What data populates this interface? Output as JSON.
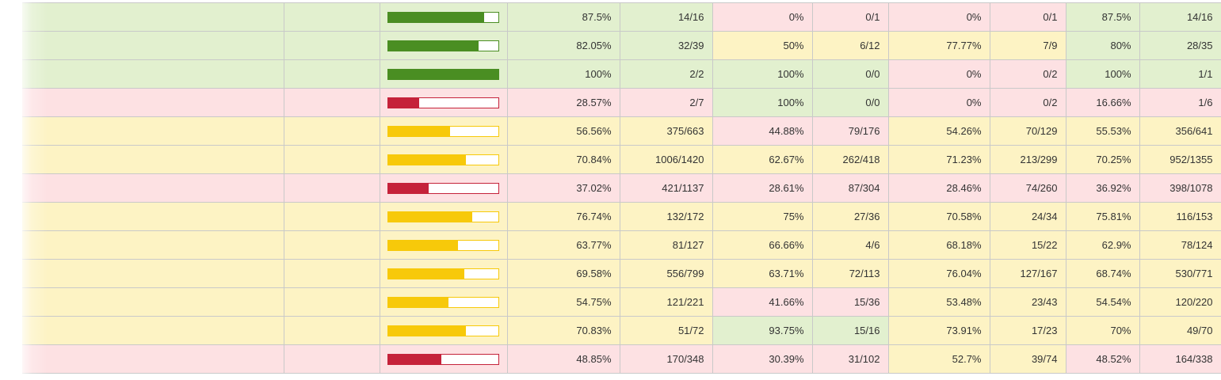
{
  "colors": {
    "success_bg": "#e2f0cf",
    "warning_bg": "#fdf3c4",
    "danger_bg": "#fde1e3",
    "bar_success": "#4a8e22",
    "bar_warning": "#f7c90a",
    "bar_danger": "#c5223a"
  },
  "rows": [
    {
      "name": "",
      "level": "success",
      "bar_fraction": 0.875,
      "bar_level": "success",
      "lines_pct": "87.5%",
      "lines": "14/16",
      "functions_pct": "0%",
      "functions": "0/1",
      "functions_level": "danger",
      "classes_pct": "0%",
      "classes": "0/1",
      "classes_level": "danger",
      "total_pct": "87.5%",
      "total": "14/16",
      "total_level": "success"
    },
    {
      "name": "",
      "level": "success",
      "bar_fraction": 0.8205,
      "bar_level": "success",
      "lines_pct": "82.05%",
      "lines": "32/39",
      "functions_pct": "50%",
      "functions": "6/12",
      "functions_level": "warning",
      "classes_pct": "77.77%",
      "classes": "7/9",
      "classes_level": "warning",
      "total_pct": "80%",
      "total": "28/35",
      "total_level": "success"
    },
    {
      "name": "",
      "level": "success",
      "bar_fraction": 1.0,
      "bar_level": "success",
      "lines_pct": "100%",
      "lines": "2/2",
      "functions_pct": "100%",
      "functions": "0/0",
      "functions_level": "success",
      "classes_pct": "0%",
      "classes": "0/2",
      "classes_level": "danger",
      "total_pct": "100%",
      "total": "1/1",
      "total_level": "success"
    },
    {
      "name": "",
      "level": "danger",
      "bar_fraction": 0.2857,
      "bar_level": "danger",
      "lines_pct": "28.57%",
      "lines": "2/7",
      "functions_pct": "100%",
      "functions": "0/0",
      "functions_level": "success",
      "classes_pct": "0%",
      "classes": "0/2",
      "classes_level": "danger",
      "total_pct": "16.66%",
      "total": "1/6",
      "total_level": "danger"
    },
    {
      "name": "",
      "level": "warning",
      "bar_fraction": 0.5656,
      "bar_level": "warning",
      "lines_pct": "56.56%",
      "lines": "375/663",
      "functions_pct": "44.88%",
      "functions": "79/176",
      "functions_level": "danger",
      "classes_pct": "54.26%",
      "classes": "70/129",
      "classes_level": "warning",
      "total_pct": "55.53%",
      "total": "356/641",
      "total_level": "warning"
    },
    {
      "name": "",
      "level": "warning",
      "bar_fraction": 0.7084,
      "bar_level": "warning",
      "lines_pct": "70.84%",
      "lines": "1006/1420",
      "functions_pct": "62.67%",
      "functions": "262/418",
      "functions_level": "warning",
      "classes_pct": "71.23%",
      "classes": "213/299",
      "classes_level": "warning",
      "total_pct": "70.25%",
      "total": "952/1355",
      "total_level": "warning"
    },
    {
      "name": "",
      "level": "danger",
      "bar_fraction": 0.3702,
      "bar_level": "danger",
      "lines_pct": "37.02%",
      "lines": "421/1137",
      "functions_pct": "28.61%",
      "functions": "87/304",
      "functions_level": "danger",
      "classes_pct": "28.46%",
      "classes": "74/260",
      "classes_level": "danger",
      "total_pct": "36.92%",
      "total": "398/1078",
      "total_level": "danger"
    },
    {
      "name": "",
      "level": "warning",
      "bar_fraction": 0.7674,
      "bar_level": "warning",
      "lines_pct": "76.74%",
      "lines": "132/172",
      "functions_pct": "75%",
      "functions": "27/36",
      "functions_level": "warning",
      "classes_pct": "70.58%",
      "classes": "24/34",
      "classes_level": "warning",
      "total_pct": "75.81%",
      "total": "116/153",
      "total_level": "warning"
    },
    {
      "name": "",
      "level": "warning",
      "bar_fraction": 0.6377,
      "bar_level": "warning",
      "lines_pct": "63.77%",
      "lines": "81/127",
      "functions_pct": "66.66%",
      "functions": "4/6",
      "functions_level": "warning",
      "classes_pct": "68.18%",
      "classes": "15/22",
      "classes_level": "warning",
      "total_pct": "62.9%",
      "total": "78/124",
      "total_level": "warning"
    },
    {
      "name": "",
      "level": "warning",
      "bar_fraction": 0.6958,
      "bar_level": "warning",
      "lines_pct": "69.58%",
      "lines": "556/799",
      "functions_pct": "63.71%",
      "functions": "72/113",
      "functions_level": "warning",
      "classes_pct": "76.04%",
      "classes": "127/167",
      "classes_level": "warning",
      "total_pct": "68.74%",
      "total": "530/771",
      "total_level": "warning"
    },
    {
      "name": "",
      "level": "warning",
      "bar_fraction": 0.5475,
      "bar_level": "warning",
      "lines_pct": "54.75%",
      "lines": "121/221",
      "functions_pct": "41.66%",
      "functions": "15/36",
      "functions_level": "danger",
      "classes_pct": "53.48%",
      "classes": "23/43",
      "classes_level": "warning",
      "total_pct": "54.54%",
      "total": "120/220",
      "total_level": "warning"
    },
    {
      "name": "",
      "level": "warning",
      "bar_fraction": 0.7083,
      "bar_level": "warning",
      "lines_pct": "70.83%",
      "lines": "51/72",
      "functions_pct": "93.75%",
      "functions": "15/16",
      "functions_level": "success",
      "classes_pct": "73.91%",
      "classes": "17/23",
      "classes_level": "warning",
      "total_pct": "70%",
      "total": "49/70",
      "total_level": "warning"
    },
    {
      "name": "",
      "level": "danger",
      "bar_fraction": 0.4885,
      "bar_level": "danger",
      "lines_pct": "48.85%",
      "lines": "170/348",
      "functions_pct": "30.39%",
      "functions": "31/102",
      "functions_level": "danger",
      "classes_pct": "52.7%",
      "classes": "39/74",
      "classes_level": "warning",
      "total_pct": "48.52%",
      "total": "164/338",
      "total_level": "danger"
    }
  ]
}
